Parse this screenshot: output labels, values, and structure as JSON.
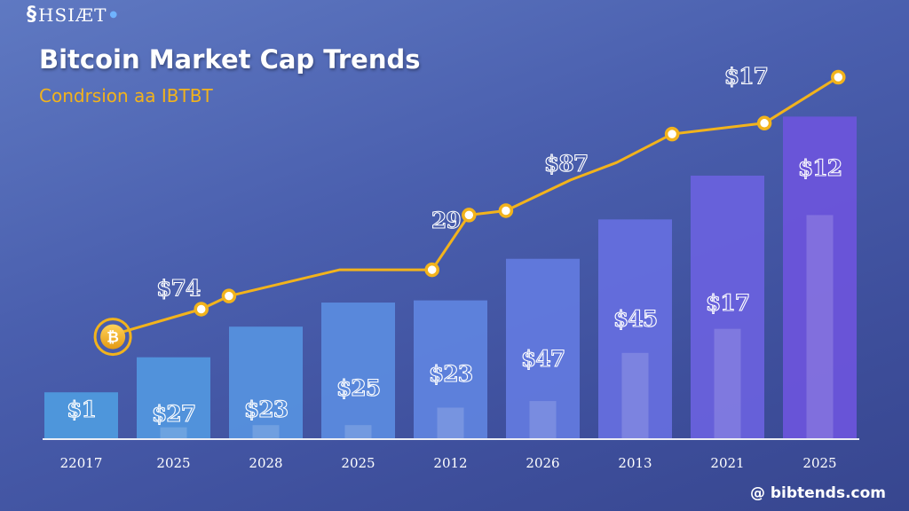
{
  "brand": {
    "name": "HSIÆT",
    "mark": "§"
  },
  "watermark": "@ bibtends.com",
  "chart_data": {
    "type": "bar",
    "title": "Bitcoin Market Cap Trends",
    "subtitle": "Condrsion aa IBTBT",
    "categories": [
      "22017",
      "2025",
      "2028",
      "2025",
      "2012",
      "2026",
      "2013",
      "2021",
      "2025"
    ],
    "series": [
      {
        "values": [
          2.1,
          3.7,
          5.1,
          6.2,
          6.3,
          8.2,
          10.0,
          12.0,
          14.7
        ]
      },
      {
        "values": [
          0,
          0.5,
          0.6,
          0.6,
          1.4,
          1.7,
          3.9,
          5.0,
          10.2
        ]
      }
    ],
    "bar_labels": [
      "$1",
      "$27",
      "$23",
      "$25",
      "$23",
      "$47",
      "$45",
      "$17",
      "$12"
    ],
    "line": {
      "x": [
        0.4,
        1.3,
        1.6,
        2.8,
        3.8,
        4.2,
        4.6,
        5.3,
        5.8,
        6.4,
        7.4,
        8.2
      ],
      "y": [
        4.8,
        5.9,
        6.5,
        7.7,
        7.7,
        10.2,
        10.4,
        11.8,
        12.6,
        13.9,
        14.4,
        16.5
      ],
      "markers": [
        false,
        true,
        true,
        false,
        true,
        true,
        true,
        false,
        false,
        true,
        true,
        true
      ]
    },
    "line_labels": [
      {
        "text": "$74",
        "x": 1.05,
        "y": 6.5
      },
      {
        "text": "29",
        "x": 3.95,
        "y": 9.6
      },
      {
        "text": "$87",
        "x": 5.25,
        "y": 12.2
      },
      {
        "text": "$17",
        "x": 7.2,
        "y": 16.2
      }
    ],
    "ylim": [
      0,
      18
    ],
    "grid": false,
    "legend": "none",
    "colors": {
      "line": "#f2b31c",
      "marker_fill": "#ffffff",
      "coin": "#f2b31c",
      "bars": [
        "#4f9be0",
        "#5a8fe0",
        "#6478e0",
        "#6d55dc"
      ]
    }
  }
}
